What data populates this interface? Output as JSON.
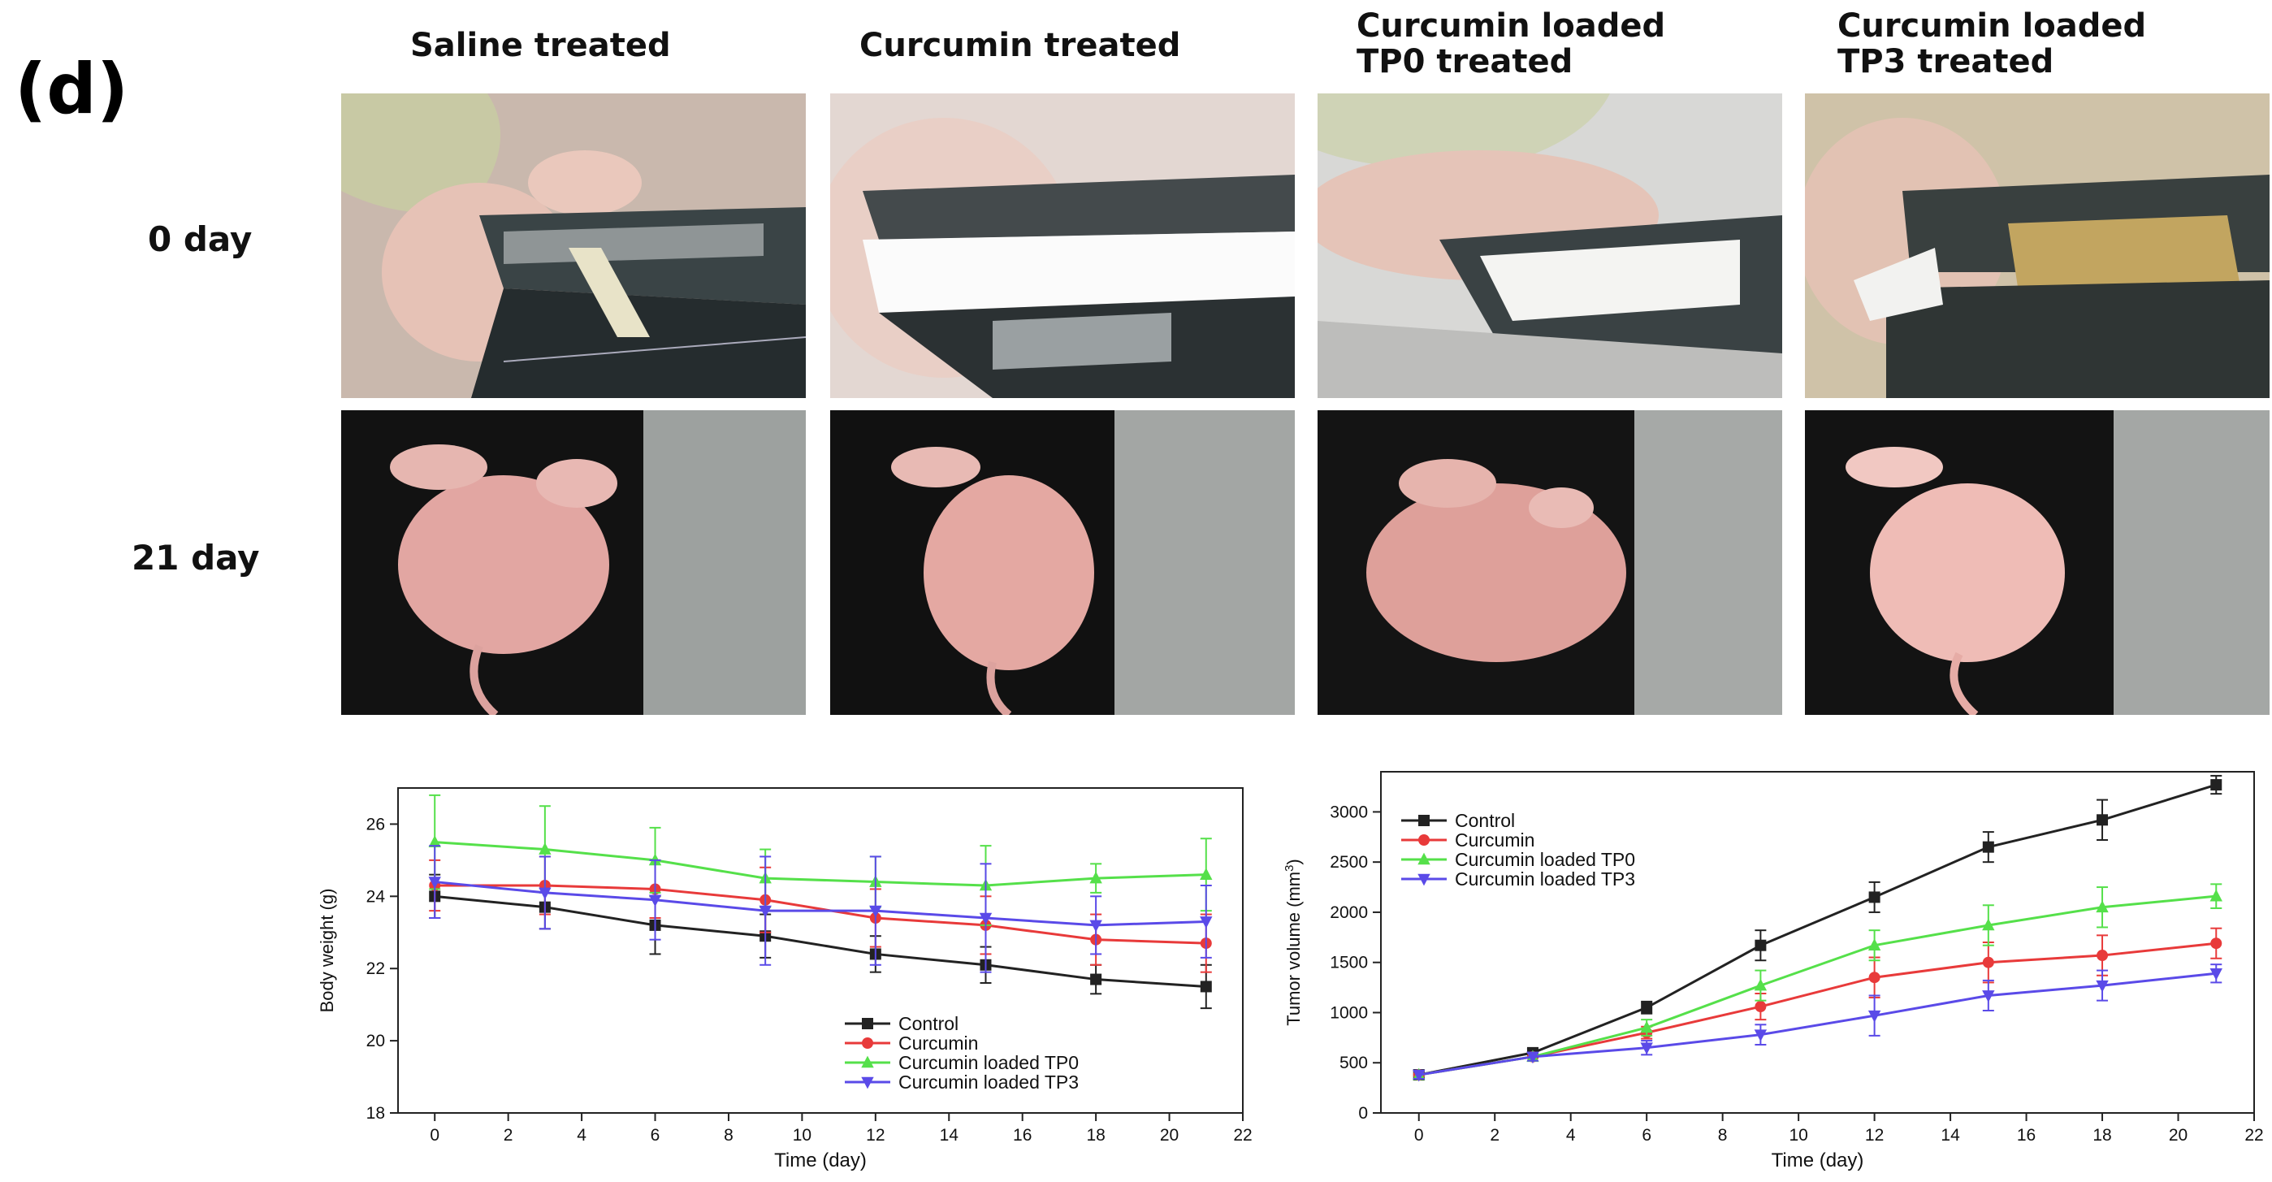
{
  "panel_label": "(d)",
  "columns": [
    {
      "title_line1": "Saline treated",
      "title_line2": ""
    },
    {
      "title_line1": "Curcumin treated",
      "title_line2": ""
    },
    {
      "title_line1": "Curcumin loaded",
      "title_line2": "TP0 treated"
    },
    {
      "title_line1": "Curcumin loaded",
      "title_line2": "TP3 treated"
    }
  ],
  "rows": [
    {
      "label": "0 day"
    },
    {
      "label": "21 day"
    }
  ],
  "colors": {
    "control": "#222222",
    "curcumin": "#e83a3a",
    "tp0": "#55e04a",
    "tp3": "#5a4ae8"
  },
  "chart_data": [
    {
      "type": "line",
      "xlabel": "Time (day)",
      "ylabel": "Body weight (g)",
      "xlim": [
        -1,
        22
      ],
      "ylim": [
        18,
        27
      ],
      "xticks": [
        0,
        2,
        4,
        6,
        8,
        10,
        12,
        14,
        16,
        18,
        20,
        22
      ],
      "yticks": [
        18,
        20,
        22,
        24,
        26
      ],
      "legend_position": "bottom-right",
      "x": [
        0,
        3,
        6,
        9,
        12,
        15,
        18,
        21
      ],
      "series": [
        {
          "name": "Control",
          "key": "control",
          "marker": "square",
          "values": [
            24.0,
            23.7,
            23.2,
            22.9,
            22.4,
            22.1,
            21.7,
            21.5
          ],
          "err": [
            0.6,
            0.6,
            0.8,
            0.6,
            0.5,
            0.5,
            0.4,
            0.6
          ]
        },
        {
          "name": "Curcumin",
          "key": "curcumin",
          "marker": "circle",
          "values": [
            24.3,
            24.3,
            24.2,
            23.9,
            23.4,
            23.2,
            22.8,
            22.7
          ],
          "err": [
            0.7,
            0.8,
            0.8,
            0.9,
            0.8,
            0.8,
            0.7,
            0.8
          ]
        },
        {
          "name": "Curcumin loaded TP0",
          "key": "tp0",
          "marker": "triangle-up",
          "values": [
            25.5,
            25.3,
            25.0,
            24.5,
            24.4,
            24.3,
            24.5,
            24.6
          ],
          "err": [
            1.3,
            1.2,
            0.9,
            0.8,
            0.7,
            1.1,
            0.4,
            1.0
          ]
        },
        {
          "name": "Curcumin loaded TP3",
          "key": "tp3",
          "marker": "triangle-down",
          "values": [
            24.4,
            24.1,
            23.9,
            23.6,
            23.6,
            23.4,
            23.2,
            23.3
          ],
          "err": [
            1.0,
            1.0,
            1.1,
            1.5,
            1.5,
            1.5,
            0.8,
            1.0
          ]
        }
      ]
    },
    {
      "type": "line",
      "xlabel": "Time (day)",
      "ylabel_main": "Tumor volume (mm",
      "ylabel_sup": "3",
      "ylabel_end": ")",
      "xlim": [
        -1,
        22
      ],
      "ylim": [
        0,
        3400
      ],
      "xticks": [
        0,
        2,
        4,
        6,
        8,
        10,
        12,
        14,
        16,
        18,
        20,
        22
      ],
      "yticks": [
        0,
        500,
        1000,
        1500,
        2000,
        2500,
        3000
      ],
      "legend_position": "top-left",
      "x": [
        0,
        3,
        6,
        9,
        12,
        15,
        18,
        21
      ],
      "series": [
        {
          "name": "Control",
          "key": "control",
          "marker": "square",
          "values": [
            380,
            600,
            1050,
            1670,
            2150,
            2650,
            2920,
            3270
          ],
          "err": [
            40,
            40,
            60,
            150,
            150,
            150,
            200,
            90
          ]
        },
        {
          "name": "Curcumin",
          "key": "curcumin",
          "marker": "circle",
          "values": [
            380,
            560,
            800,
            1060,
            1350,
            1500,
            1570,
            1690
          ],
          "err": [
            40,
            40,
            60,
            130,
            200,
            200,
            200,
            150
          ]
        },
        {
          "name": "Curcumin loaded TP0",
          "key": "tp0",
          "marker": "triangle-up",
          "values": [
            380,
            560,
            850,
            1270,
            1670,
            1870,
            2050,
            2160
          ],
          "err": [
            40,
            40,
            80,
            150,
            150,
            200,
            200,
            120
          ]
        },
        {
          "name": "Curcumin loaded TP3",
          "key": "tp3",
          "marker": "triangle-down",
          "values": [
            380,
            560,
            650,
            780,
            970,
            1170,
            1270,
            1390
          ],
          "err": [
            40,
            40,
            70,
            100,
            200,
            150,
            150,
            90
          ]
        }
      ]
    }
  ]
}
